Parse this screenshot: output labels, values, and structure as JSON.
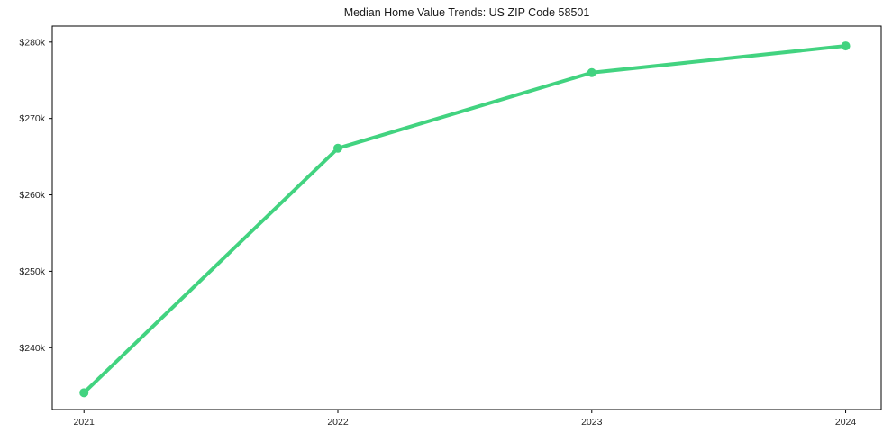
{
  "chart_data": {
    "type": "line",
    "title": "Median Home Value Trends: US ZIP Code 58501",
    "xlabel": "",
    "ylabel": "",
    "x": [
      2021,
      2022,
      2023,
      2024
    ],
    "series": [
      {
        "name": "Median Home Value",
        "values": [
          234100,
          266100,
          276000,
          279500
        ]
      }
    ],
    "x_tick_labels": [
      "2021",
      "2022",
      "2023",
      "2024"
    ],
    "y_ticks": [
      240000,
      250000,
      260000,
      270000,
      280000
    ],
    "y_tick_labels": [
      "$240k",
      "$250k",
      "$260k",
      "$270k",
      "$280k"
    ],
    "xlim": [
      2020.875,
      2024.14
    ],
    "ylim": [
      231900,
      282100
    ],
    "grid": false,
    "legend": null,
    "line_color": "#42d380",
    "marker": "circle",
    "spine_color": "#000000",
    "tick_label_color": "#262626",
    "background_color": "#ffffff"
  }
}
